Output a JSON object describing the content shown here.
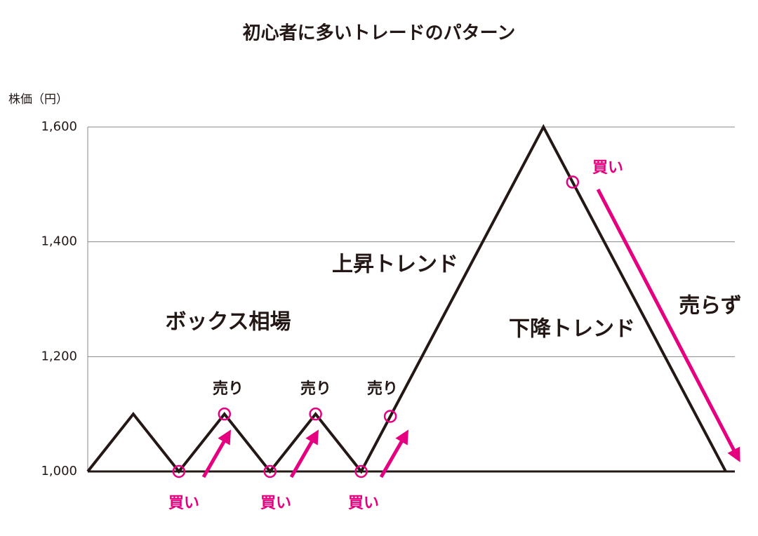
{
  "chart_data": {
    "type": "line",
    "title": "初心者に多いトレードのパターン",
    "y_label": "株価（円）",
    "x": [
      0,
      1,
      2,
      3,
      4,
      5,
      6,
      10,
      14
    ],
    "values": [
      1000,
      1100,
      1000,
      1100,
      1000,
      1100,
      1000,
      1600,
      1000
    ],
    "color": "#231815",
    "accent_color": "#e4007f",
    "xlim": [
      0,
      14.2
    ],
    "ylim": [
      1000,
      1600
    ],
    "yticks": [
      {
        "value": 1000,
        "label": "1,000"
      },
      {
        "value": 1200,
        "label": "1,200"
      },
      {
        "value": 1400,
        "label": "1,400"
      },
      {
        "value": 1600,
        "label": "1,600"
      }
    ],
    "grid": true,
    "annotations": [
      "ボックス相場",
      "上昇トレンド",
      "下降トレンド",
      "売り",
      "売り",
      "売り",
      "買い",
      "買い",
      "買い",
      "買い",
      "売らず"
    ]
  }
}
